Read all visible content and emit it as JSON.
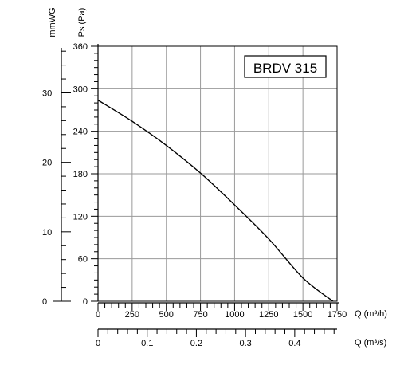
{
  "chart_data": {
    "type": "line",
    "title": "BRDV 315",
    "xlabel": "Q (m³/h)",
    "ylabel": "Ps (Pa)",
    "y2label": "mmWG",
    "x2label": "Q (m³/s)",
    "xlim": [
      0,
      1750
    ],
    "ylim": [
      0,
      360
    ],
    "x_ticks": [
      "0",
      "250",
      "500",
      "750",
      "1000",
      "1250",
      "1500",
      "1750"
    ],
    "y_ticks": [
      "0",
      "60",
      "120",
      "180",
      "240",
      "300",
      "360"
    ],
    "y2_ticks": [
      "0",
      "10",
      "20",
      "30"
    ],
    "x2_ticks": [
      "0",
      "0.1",
      "0.2",
      "0.3",
      "0.4"
    ],
    "grid": true,
    "series": [
      {
        "x": [
          0,
          250,
          500,
          750,
          1000,
          1250,
          1500,
          1720
        ],
        "y": [
          284,
          254,
          220,
          181,
          136,
          88,
          33,
          0
        ]
      }
    ]
  }
}
